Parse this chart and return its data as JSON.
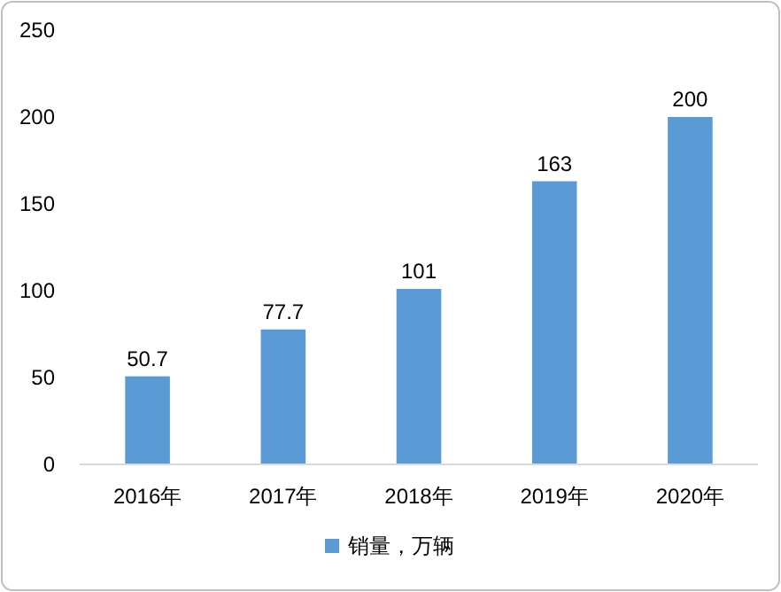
{
  "chart_data": {
    "type": "bar",
    "categories": [
      "2016年",
      "2017年",
      "2018年",
      "2019年",
      "2020年"
    ],
    "series": [
      {
        "name": "销量，万辆",
        "color": "#5b9bd5",
        "values": [
          50.7,
          77.7,
          101,
          163,
          200
        ]
      }
    ],
    "ylim": [
      0,
      250
    ],
    "yticks": [
      0,
      50,
      100,
      150,
      200,
      250
    ],
    "data_labels": true,
    "legend": "bottom"
  }
}
